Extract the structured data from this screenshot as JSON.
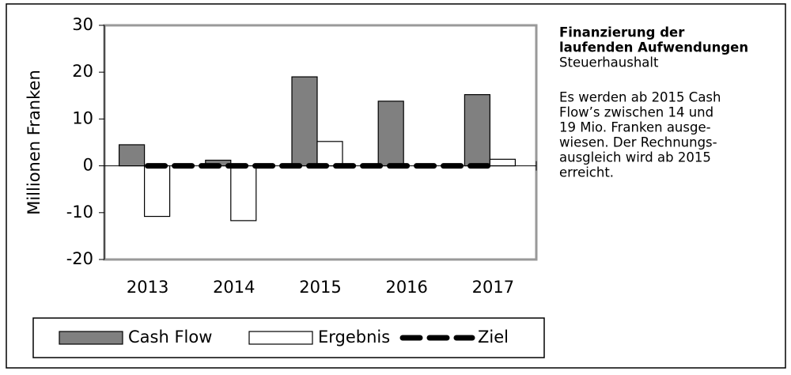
{
  "chart_data": {
    "type": "bar",
    "title_lines": [
      "Finanzierung der",
      "laufenden Aufwendungen"
    ],
    "subtitle": "Steuerhaushalt",
    "annotation_lines": [
      "Es werden ab 2015 Cash",
      "Flow’s zwischen 14 und",
      "19 Mio. Franken ausge-",
      "wiesen. Der Rechnungs-",
      "ausgleich wird ab 2015",
      "erreicht."
    ],
    "y_label": "Millionen Franken",
    "categories": [
      "2013",
      "2014",
      "2015",
      "2016",
      "2017"
    ],
    "series": [
      {
        "name": "Cash Flow",
        "type": "bar",
        "color": "#808080",
        "values": [
          4.5,
          1.2,
          19,
          13.8,
          15.2
        ]
      },
      {
        "name": "Ergebnis",
        "type": "bar",
        "color": "#ffffff",
        "values": [
          -10.8,
          -11.7,
          5.2,
          0,
          1.4
        ]
      },
      {
        "name": "Ziel",
        "type": "line",
        "color": "#000000",
        "values": [
          0,
          0,
          0,
          0,
          0
        ]
      }
    ],
    "ylim": [
      -20,
      30
    ],
    "yticks": [
      -20,
      -10,
      0,
      10,
      20,
      30
    ],
    "grid": false,
    "legend": "bottom"
  }
}
